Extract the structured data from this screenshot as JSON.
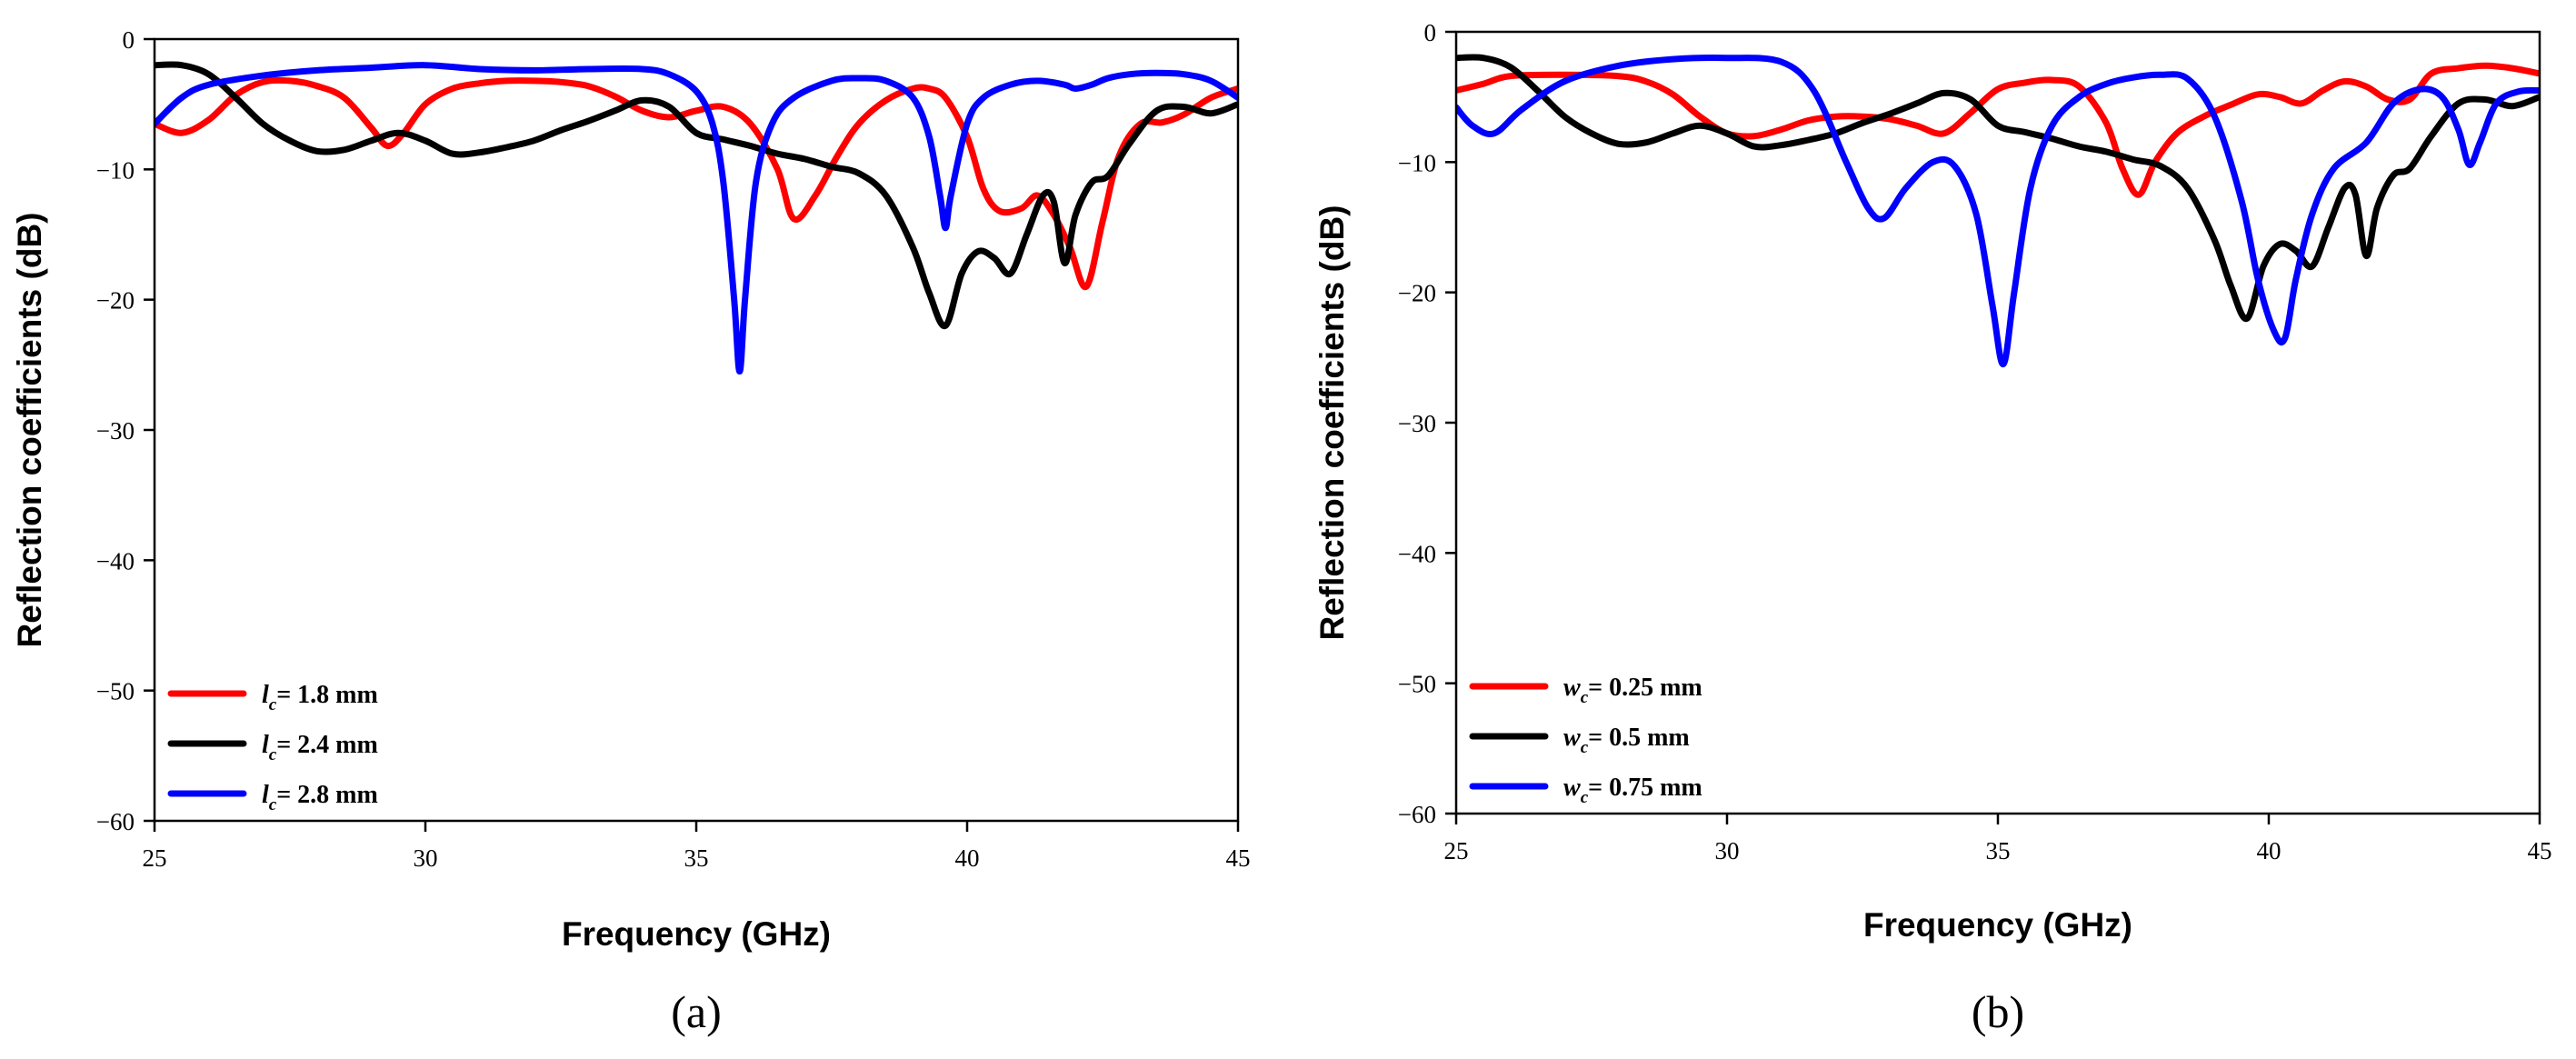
{
  "chart_data": [
    {
      "type": "line",
      "panel_label": "(a)",
      "xlabel": "Frequency (GHz)",
      "ylabel": "Reflection coefficients (dB)",
      "xlim": [
        25,
        45
      ],
      "ylim": [
        -60,
        0
      ],
      "xticks": [
        25,
        30,
        35,
        40,
        45
      ],
      "yticks": [
        0,
        -10,
        -20,
        -30,
        -40,
        -50,
        -60
      ],
      "grid": false,
      "legend_position": "bottom-left",
      "series": [
        {
          "name": "l",
          "name_sub": "c",
          "name_tail": "= 1.8 mm",
          "color": "#ff0000",
          "x": [
            25,
            25.5,
            26,
            26.5,
            27,
            27.5,
            28,
            28.5,
            29,
            29.3,
            29.6,
            30,
            30.5,
            31,
            31.5,
            32,
            32.5,
            33,
            33.5,
            34,
            34.5,
            35,
            35.5,
            36,
            36.5,
            36.8,
            37.2,
            37.6,
            38,
            38.5,
            39,
            39.3,
            39.6,
            40,
            40.3,
            40.6,
            41,
            41.3,
            41.6,
            41.9,
            42.2,
            42.5,
            42.8,
            43.2,
            43.6,
            44,
            44.5,
            45
          ],
          "y": [
            -6.5,
            -7.2,
            -6.2,
            -4.3,
            -3.3,
            -3.2,
            -3.6,
            -4.5,
            -6.8,
            -8.2,
            -7.2,
            -5,
            -3.8,
            -3.4,
            -3.2,
            -3.2,
            -3.3,
            -3.6,
            -4.4,
            -5.5,
            -6,
            -5.5,
            -5.2,
            -6.5,
            -10,
            -13.8,
            -12,
            -9,
            -6.5,
            -4.7,
            -3.8,
            -3.8,
            -4.5,
            -7.5,
            -11.5,
            -13.2,
            -13,
            -12,
            -13.5,
            -16,
            -19,
            -14,
            -9,
            -6.5,
            -6.4,
            -5.8,
            -4.5,
            -3.8
          ]
        },
        {
          "name": "l",
          "name_sub": "c",
          "name_tail": "= 2.4 mm",
          "color": "#000000",
          "x": [
            25,
            25.5,
            26,
            26.5,
            27,
            27.5,
            28,
            28.5,
            29,
            29.5,
            30,
            30.5,
            31,
            31.5,
            32,
            32.5,
            33,
            33.5,
            34,
            34.5,
            35,
            35.5,
            36,
            36.5,
            37,
            37.5,
            38,
            38.5,
            39,
            39.3,
            39.6,
            39.9,
            40.2,
            40.5,
            40.8,
            41.1,
            41.4,
            41.6,
            41.8,
            42,
            42.3,
            42.6,
            43,
            43.5,
            44,
            44.5,
            45
          ],
          "y": [
            -2,
            -2,
            -2.7,
            -4.5,
            -6.5,
            -7.8,
            -8.6,
            -8.5,
            -7.8,
            -7.2,
            -7.8,
            -8.8,
            -8.7,
            -8.3,
            -7.8,
            -7,
            -6.3,
            -5.5,
            -4.7,
            -5.2,
            -7.2,
            -7.7,
            -8.2,
            -8.8,
            -9.2,
            -9.8,
            -10.3,
            -12,
            -16,
            -19.5,
            -22,
            -18,
            -16.3,
            -16.8,
            -18,
            -15,
            -12,
            -12.5,
            -17.2,
            -13.5,
            -11,
            -10.5,
            -8,
            -5.5,
            -5.2,
            -5.7,
            -5
          ]
        },
        {
          "name": "l",
          "name_sub": "c",
          "name_tail": "= 2.8 mm",
          "color": "#0000ff",
          "x": [
            25,
            25.5,
            26,
            27,
            28,
            29,
            30,
            31,
            32,
            33,
            34,
            34.5,
            35,
            35.3,
            35.5,
            35.7,
            35.8,
            35.9,
            36.1,
            36.4,
            36.8,
            37.5,
            38,
            38.5,
            39,
            39.3,
            39.5,
            39.6,
            39.7,
            40,
            40.3,
            40.8,
            41.3,
            41.8,
            42,
            42.3,
            42.6,
            43,
            43.5,
            44,
            44.5,
            45
          ],
          "y": [
            -6.5,
            -4.5,
            -3.5,
            -2.8,
            -2.4,
            -2.2,
            -2,
            -2.3,
            -2.4,
            -2.3,
            -2.3,
            -2.7,
            -4,
            -6.5,
            -11,
            -20,
            -25.5,
            -20,
            -11,
            -6.5,
            -4.5,
            -3.2,
            -3,
            -3.2,
            -4.5,
            -7.5,
            -12,
            -14.5,
            -12,
            -6.5,
            -4.5,
            -3.5,
            -3.2,
            -3.5,
            -3.8,
            -3.5,
            -3,
            -2.7,
            -2.6,
            -2.7,
            -3.2,
            -4.5
          ]
        }
      ]
    },
    {
      "type": "line",
      "panel_label": "(b)",
      "xlabel": "Frequency (GHz)",
      "ylabel": "Reflection coefficients (dB)",
      "xlim": [
        25,
        45
      ],
      "ylim": [
        -60,
        0
      ],
      "xticks": [
        25,
        30,
        35,
        40,
        45
      ],
      "yticks": [
        0,
        -10,
        -20,
        -30,
        -40,
        -50,
        -60
      ],
      "grid": false,
      "legend_position": "bottom-left",
      "series": [
        {
          "name": "w",
          "name_sub": "c",
          "name_tail": "= 0.25 mm",
          "color": "#ff0000",
          "x": [
            25,
            25.5,
            26,
            27,
            28,
            28.5,
            29,
            29.5,
            30,
            30.5,
            31,
            31.5,
            32,
            32.5,
            33,
            33.5,
            34,
            34.5,
            35,
            35.5,
            36,
            36.5,
            37,
            37.3,
            37.6,
            37.9,
            38.3,
            38.8,
            39.3,
            39.8,
            40.2,
            40.6,
            41,
            41.4,
            41.8,
            42.2,
            42.6,
            43,
            43.5,
            44,
            44.5,
            45
          ],
          "y": [
            -4.5,
            -4,
            -3.4,
            -3.3,
            -3.4,
            -3.8,
            -4.8,
            -6.5,
            -7.8,
            -8,
            -7.5,
            -6.8,
            -6.5,
            -6.5,
            -6.7,
            -7.2,
            -7.8,
            -6.2,
            -4.4,
            -3.9,
            -3.7,
            -4.2,
            -7,
            -10.5,
            -12.5,
            -10,
            -7.8,
            -6.5,
            -5.6,
            -4.8,
            -5,
            -5.5,
            -4.5,
            -3.8,
            -4.2,
            -5.2,
            -5.2,
            -3.2,
            -2.8,
            -2.6,
            -2.8,
            -3.2
          ]
        },
        {
          "name": "w",
          "name_sub": "c",
          "name_tail": "= 0.5 mm",
          "color": "#000000",
          "x": [
            25,
            25.5,
            26,
            26.5,
            27,
            27.5,
            28,
            28.5,
            29,
            29.5,
            30,
            30.5,
            31,
            31.5,
            32,
            32.5,
            33,
            33.5,
            34,
            34.5,
            35,
            35.5,
            36,
            36.5,
            37,
            37.5,
            38,
            38.5,
            39,
            39.3,
            39.6,
            39.9,
            40.2,
            40.5,
            40.8,
            41.1,
            41.4,
            41.6,
            41.8,
            42,
            42.3,
            42.6,
            43,
            43.5,
            44,
            44.5,
            45
          ],
          "y": [
            -2,
            -2,
            -2.7,
            -4.5,
            -6.5,
            -7.8,
            -8.6,
            -8.5,
            -7.8,
            -7.2,
            -7.8,
            -8.8,
            -8.7,
            -8.3,
            -7.8,
            -7,
            -6.3,
            -5.5,
            -4.7,
            -5.2,
            -7.2,
            -7.7,
            -8.2,
            -8.8,
            -9.2,
            -9.8,
            -10.3,
            -12,
            -16,
            -19.5,
            -22,
            -18,
            -16.3,
            -16.8,
            -18,
            -15,
            -12,
            -12.5,
            -17.2,
            -13.5,
            -11,
            -10.5,
            -8,
            -5.5,
            -5.2,
            -5.7,
            -5
          ]
        },
        {
          "name": "w",
          "name_sub": "c",
          "name_tail": "= 0.75 mm",
          "color": "#0000ff",
          "x": [
            25,
            25.3,
            25.7,
            26.2,
            27,
            28,
            29,
            30,
            31,
            31.6,
            32.2,
            32.6,
            32.9,
            33.3,
            33.8,
            34.2,
            34.6,
            34.9,
            35.1,
            35.3,
            35.6,
            36,
            36.5,
            37,
            37.5,
            38,
            38.5,
            39,
            39.5,
            39.8,
            40.1,
            40.3,
            40.5,
            40.8,
            41.2,
            41.8,
            42.3,
            42.8,
            43.2,
            43.5,
            43.7,
            43.9,
            44.2,
            44.6,
            45
          ],
          "y": [
            -5.8,
            -7.2,
            -7.8,
            -6,
            -3.8,
            -2.6,
            -2.1,
            -2,
            -2.3,
            -4.5,
            -10,
            -13.5,
            -14.3,
            -12,
            -10,
            -10.3,
            -14,
            -21,
            -25.5,
            -20,
            -12,
            -7.2,
            -5,
            -4,
            -3.5,
            -3.3,
            -3.6,
            -6.5,
            -13,
            -19,
            -23,
            -23.5,
            -19,
            -14,
            -10.5,
            -8.5,
            -5.5,
            -4.4,
            -5,
            -7.5,
            -10.2,
            -8.5,
            -5.5,
            -4.6,
            -4.5
          ]
        }
      ]
    }
  ]
}
